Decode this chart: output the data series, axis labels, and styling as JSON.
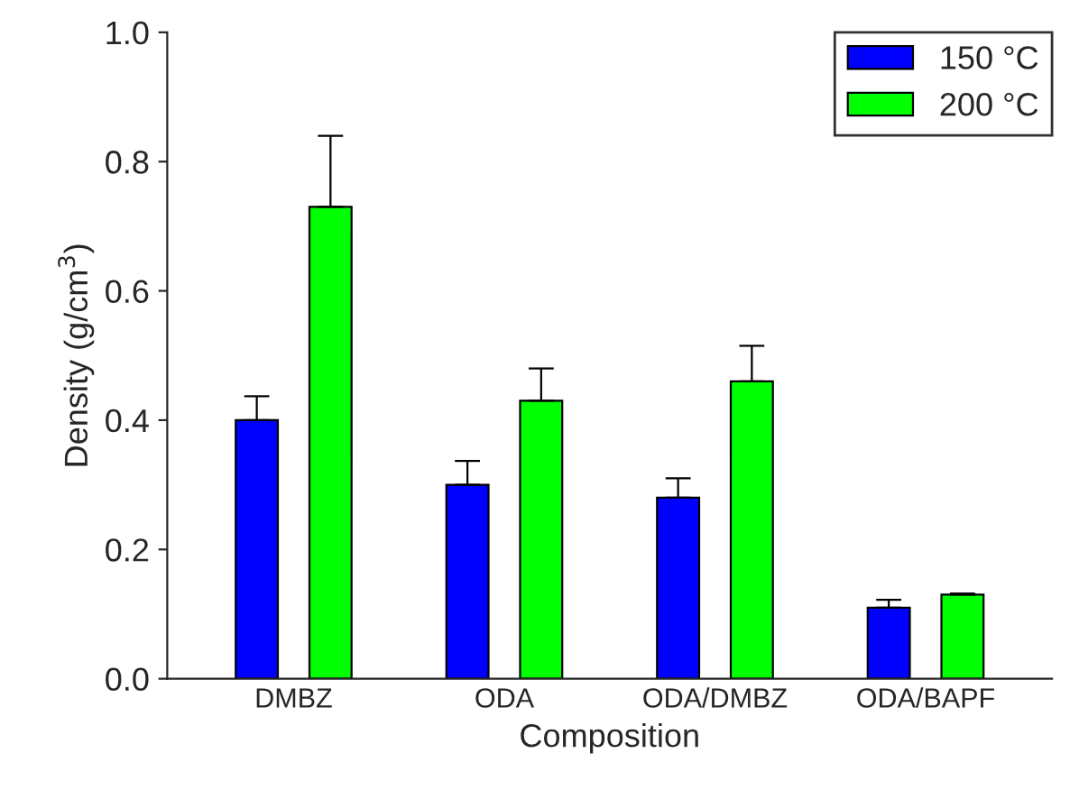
{
  "chart_data": {
    "type": "bar",
    "xlabel": "Composition",
    "ylabel": "Density (g/cm$^{3}$)",
    "categories": [
      "DMBZ",
      "ODA",
      "ODA/DMBZ",
      "ODA/BAPF"
    ],
    "series": [
      {
        "name": "150 °C",
        "color": "#0000ff",
        "values": [
          0.4,
          0.3,
          0.28,
          0.11
        ],
        "errors": [
          [
            0.4,
            0.437
          ],
          [
            0.3,
            0.337
          ],
          [
            0.28,
            0.31
          ],
          [
            0.11,
            0.122
          ]
        ]
      },
      {
        "name": "200 °C",
        "color": "#00ff00",
        "values": [
          0.73,
          0.43,
          0.46,
          0.13
        ],
        "errors": [
          [
            0.73,
            0.84
          ],
          [
            0.43,
            0.48
          ],
          [
            0.46,
            0.515
          ],
          [
            0.13,
            0.132
          ]
        ]
      }
    ],
    "ylim": [
      0,
      1.0
    ],
    "yticks": [
      {
        "value": 0,
        "label": "0.0"
      },
      {
        "value": 0.2,
        "label": "0.2"
      },
      {
        "value": 0.4,
        "label": "0.4"
      },
      {
        "value": 0.6,
        "label": "0.6"
      },
      {
        "value": 0.8,
        "label": "0.8"
      },
      {
        "value": 1.0,
        "label": "1.0"
      }
    ],
    "grid": false,
    "legend": "top right"
  }
}
